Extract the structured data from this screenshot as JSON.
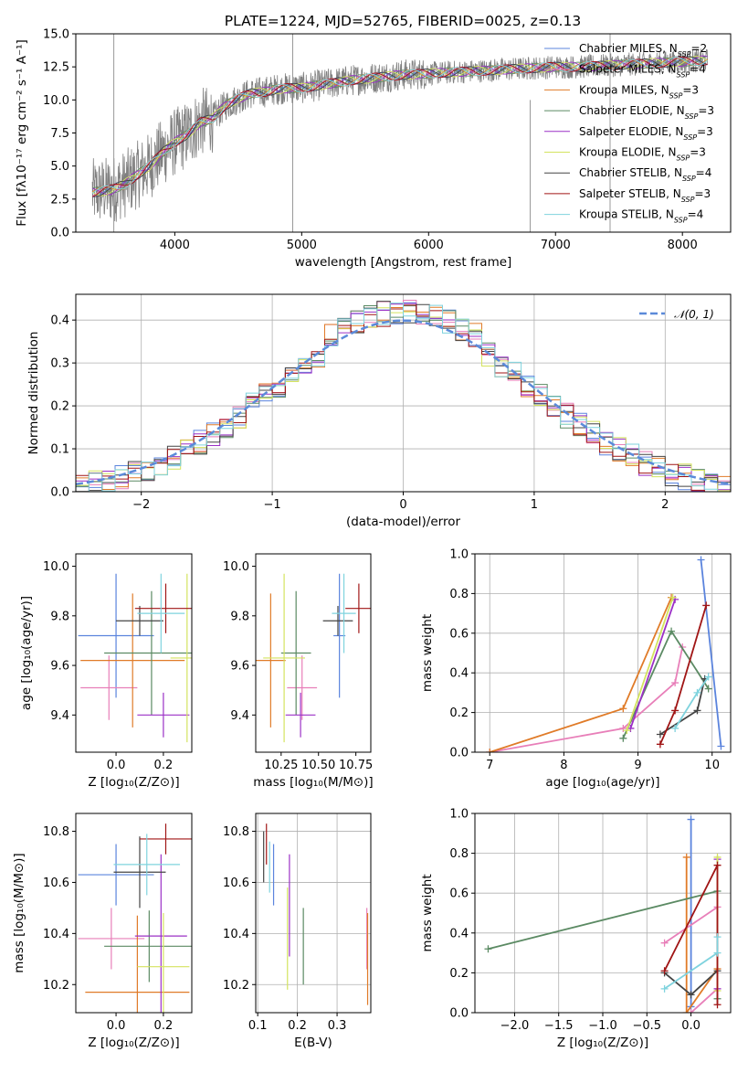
{
  "figure": {
    "spectrum_title": "PLATE=1224, MJD=52765, FIBERID=0025, z=0.13"
  },
  "colors": {
    "Chabrier MILES": "#5b84dd",
    "Salpeter MILES": "#e87fb9",
    "Kroupa MILES": "#e07b28",
    "Chabrier ELODIE": "#5b8a63",
    "Salpeter ELODIE": "#9b30c6",
    "Kroupa ELODIE": "#d4e35f",
    "Chabrier STELIB": "#444444",
    "Salpeter STELIB": "#a01515",
    "Kroupa STELIB": "#7fd3de",
    "data": "#808080",
    "normal": "#5b8ad9"
  },
  "chart_data": [
    {
      "id": "spectrum",
      "type": "line",
      "title": "PLATE=1224, MJD=52765, FIBERID=0025, z=0.13",
      "xlabel": "wavelength [Angstrom, rest frame]",
      "ylabel": "Flux [fλ10⁻¹⁷ erg cm⁻² s⁻¹ A⁻¹]",
      "xlim": [
        3220,
        8380
      ],
      "ylim": [
        0,
        15
      ],
      "xticks": [
        4000,
        5000,
        6000,
        7000,
        8000
      ],
      "yticks": [
        0.0,
        2.5,
        5.0,
        7.5,
        10.0,
        12.5,
        15.0
      ],
      "legend_position": "right",
      "data_trend": {
        "x": [
          3350,
          3500,
          3600,
          3700,
          3800,
          3900,
          4000,
          4100,
          4200,
          4300,
          4400,
          4500,
          4600,
          4700,
          4800,
          4900,
          5000,
          5200,
          5400,
          5600,
          5800,
          6000,
          6200,
          6400,
          6600,
          6800,
          7000,
          7200,
          7400,
          7600,
          7800,
          8000,
          8200
        ],
        "y": [
          3.0,
          3.2,
          3.6,
          4.3,
          5.0,
          6.0,
          6.8,
          7.4,
          8.3,
          8.6,
          9.6,
          10.1,
          10.5,
          10.6,
          10.8,
          10.9,
          10.9,
          11.2,
          11.5,
          11.7,
          11.9,
          12.0,
          12.1,
          12.2,
          12.3,
          12.4,
          12.5,
          12.5,
          12.6,
          12.7,
          12.8,
          12.9,
          13.0
        ]
      },
      "series": [
        {
          "name": "Chabrier MILES",
          "nssp": "2"
        },
        {
          "name": "Salpeter MILES",
          "nssp": "4"
        },
        {
          "name": "Kroupa MILES",
          "nssp": "3"
        },
        {
          "name": "Chabrier ELODIE",
          "nssp": "3"
        },
        {
          "name": "Salpeter ELODIE",
          "nssp": "3"
        },
        {
          "name": "Kroupa ELODIE",
          "nssp": "3"
        },
        {
          "name": "Chabrier STELIB",
          "nssp": "4"
        },
        {
          "name": "Salpeter STELIB",
          "nssp": "3"
        },
        {
          "name": "Kroupa STELIB",
          "nssp": "4"
        }
      ]
    },
    {
      "id": "residuals",
      "type": "line",
      "xlabel": "(data-model)/error",
      "ylabel": "Normed distribution",
      "xlim": [
        -2.5,
        2.5
      ],
      "ylim": [
        0,
        0.46
      ],
      "xticks": [
        -2,
        -1,
        0,
        1,
        2
      ],
      "yticks": [
        0.0,
        0.1,
        0.2,
        0.3,
        0.4
      ],
      "grid": true,
      "legend": "𝒩(0, 1)",
      "legend_position": "top-right",
      "bin_width": 0.1
    },
    {
      "id": "z_age",
      "type": "scatter",
      "xlabel": "Z [log₁₀(Z/Z⊙)]",
      "ylabel": "age  [log₁₀(age/yr)]",
      "xlim": [
        -0.17,
        0.32
      ],
      "ylim": [
        9.25,
        10.05
      ],
      "xticks": [
        0.0,
        0.2
      ],
      "yticks": [
        9.4,
        9.6,
        9.8,
        10.0
      ],
      "points": [
        {
          "model": "Chabrier MILES",
          "x": 0.0,
          "xerr": 0.16,
          "y": 9.72,
          "yerr": 0.25
        },
        {
          "model": "Salpeter MILES",
          "x": -0.03,
          "xerr": 0.12,
          "y": 9.51,
          "yerr": 0.13
        },
        {
          "model": "Kroupa MILES",
          "x": 0.07,
          "xerr": 0.22,
          "y": 9.62,
          "yerr": 0.27
        },
        {
          "model": "Chabrier ELODIE",
          "x": 0.15,
          "xerr": 0.2,
          "y": 9.65,
          "yerr": 0.25
        },
        {
          "model": "Salpeter ELODIE",
          "x": 0.2,
          "xerr": 0.11,
          "y": 9.4,
          "yerr": 0.09
        },
        {
          "model": "Kroupa ELODIE",
          "x": 0.3,
          "xerr": 0.07,
          "y": 9.63,
          "yerr": 0.34
        },
        {
          "model": "Chabrier STELIB",
          "x": 0.1,
          "xerr": 0.1,
          "y": 9.78,
          "yerr": 0.06
        },
        {
          "model": "Salpeter STELIB",
          "x": 0.21,
          "xerr": 0.13,
          "y": 9.83,
          "yerr": 0.1
        },
        {
          "model": "Kroupa STELIB",
          "x": 0.19,
          "xerr": 0.1,
          "y": 9.81,
          "yerr": 0.16
        }
      ]
    },
    {
      "id": "mass_age",
      "type": "scatter",
      "xlabel": "mass [log₁₀(M/M⊙)]",
      "ylabel": "",
      "xlim": [
        10.08,
        10.85
      ],
      "ylim": [
        9.25,
        10.05
      ],
      "xticks": [
        10.25,
        10.5,
        10.75
      ],
      "yticks": [
        9.4,
        9.6,
        9.8,
        10.0
      ],
      "points": [
        {
          "model": "Chabrier MILES",
          "x": 10.64,
          "xerr": 0.04,
          "y": 9.72,
          "yerr": 0.25
        },
        {
          "model": "Salpeter MILES",
          "x": 10.39,
          "xerr": 0.1,
          "y": 9.51,
          "yerr": 0.13
        },
        {
          "model": "Kroupa MILES",
          "x": 10.18,
          "xerr": 0.1,
          "y": 9.62,
          "yerr": 0.27
        },
        {
          "model": "Chabrier ELODIE",
          "x": 10.35,
          "xerr": 0.1,
          "y": 9.65,
          "yerr": 0.25
        },
        {
          "model": "Salpeter ELODIE",
          "x": 10.38,
          "xerr": 0.1,
          "y": 9.4,
          "yerr": 0.09
        },
        {
          "model": "Kroupa ELODIE",
          "x": 10.27,
          "xerr": 0.14,
          "y": 9.63,
          "yerr": 0.34
        },
        {
          "model": "Chabrier STELIB",
          "x": 10.63,
          "xerr": 0.1,
          "y": 9.78,
          "yerr": 0.06
        },
        {
          "model": "Salpeter STELIB",
          "x": 10.77,
          "xerr": 0.09,
          "y": 9.83,
          "yerr": 0.1
        },
        {
          "model": "Kroupa STELIB",
          "x": 10.67,
          "xerr": 0.08,
          "y": 9.81,
          "yerr": 0.16
        }
      ]
    },
    {
      "id": "age_weight",
      "type": "line",
      "xlabel": "age  [log₁₀(age/yr)]",
      "ylabel": "mass weight",
      "xlim": [
        6.8,
        10.25
      ],
      "ylim": [
        0,
        1.0
      ],
      "xticks": [
        7,
        8,
        9,
        10
      ],
      "yticks": [
        0.0,
        0.2,
        0.4,
        0.6,
        0.8,
        1.0
      ],
      "grid": true,
      "series": [
        {
          "model": "Chabrier MILES",
          "x": [
            9.85,
            10.12
          ],
          "y": [
            0.97,
            0.03
          ]
        },
        {
          "model": "Salpeter MILES",
          "x": [
            7.0,
            8.8,
            9.5,
            9.6
          ],
          "y": [
            0.0,
            0.12,
            0.35,
            0.53
          ]
        },
        {
          "model": "Kroupa MILES",
          "x": [
            7.0,
            8.8,
            9.45
          ],
          "y": [
            0.0,
            0.22,
            0.78
          ]
        },
        {
          "model": "Chabrier ELODIE",
          "x": [
            8.8,
            9.45,
            9.95
          ],
          "y": [
            0.07,
            0.61,
            0.32
          ]
        },
        {
          "model": "Salpeter ELODIE",
          "x": [
            8.9,
            9.5
          ],
          "y": [
            0.12,
            0.77
          ]
        },
        {
          "model": "Kroupa ELODIE",
          "x": [
            8.85,
            9.47
          ],
          "y": [
            0.11,
            0.78
          ]
        },
        {
          "model": "Chabrier STELIB",
          "x": [
            9.3,
            9.8,
            9.9
          ],
          "y": [
            0.09,
            0.21,
            0.37
          ]
        },
        {
          "model": "Salpeter STELIB",
          "x": [
            9.3,
            9.5,
            9.92
          ],
          "y": [
            0.04,
            0.21,
            0.74
          ]
        },
        {
          "model": "Kroupa STELIB",
          "x": [
            9.5,
            9.8,
            9.95
          ],
          "y": [
            0.12,
            0.3,
            0.38
          ]
        }
      ]
    },
    {
      "id": "z_mass",
      "type": "scatter",
      "xlabel": "Z [log₁₀(Z/Z⊙)]",
      "ylabel": "mass [log₁₀(M/M⊙)]",
      "xlim": [
        -0.17,
        0.32
      ],
      "ylim": [
        10.09,
        10.87
      ],
      "xticks": [
        0.0,
        0.2
      ],
      "yticks": [
        10.2,
        10.4,
        10.6,
        10.8
      ],
      "points": [
        {
          "model": "Chabrier MILES",
          "x": 0.0,
          "xerr": 0.16,
          "y": 10.63,
          "yerr": 0.12
        },
        {
          "model": "Salpeter MILES",
          "x": -0.02,
          "xerr": 0.14,
          "y": 10.38,
          "yerr": 0.12
        },
        {
          "model": "Kroupa MILES",
          "x": 0.09,
          "xerr": 0.22,
          "y": 10.17,
          "yerr": 0.3
        },
        {
          "model": "Chabrier ELODIE",
          "x": 0.14,
          "xerr": 0.19,
          "y": 10.35,
          "yerr": 0.14
        },
        {
          "model": "Salpeter ELODIE",
          "x": 0.19,
          "xerr": 0.11,
          "y": 10.39,
          "yerr": 0.32
        },
        {
          "model": "Kroupa ELODIE",
          "x": 0.2,
          "xerr": 0.11,
          "y": 10.27,
          "yerr": 0.21
        },
        {
          "model": "Chabrier STELIB",
          "x": 0.1,
          "xerr": 0.11,
          "y": 10.64,
          "yerr": 0.14
        },
        {
          "model": "Salpeter STELIB",
          "x": 0.21,
          "xerr": 0.11,
          "y": 10.77,
          "yerr": 0.06
        },
        {
          "model": "Kroupa STELIB",
          "x": 0.13,
          "xerr": 0.14,
          "y": 10.67,
          "yerr": 0.12
        }
      ]
    },
    {
      "id": "ebv_mass",
      "type": "scatter",
      "xlabel": "E(B-V)",
      "ylabel": "",
      "xlim": [
        0.095,
        0.385
      ],
      "ylim": [
        10.09,
        10.87
      ],
      "xticks": [
        0.1,
        0.2,
        0.3
      ],
      "yticks": [
        10.2,
        10.4,
        10.6,
        10.8
      ],
      "grid": true,
      "points": [
        {
          "model": "Chabrier MILES",
          "x": 0.14,
          "y": 10.63,
          "yerr": 0.12
        },
        {
          "model": "Salpeter MILES",
          "x": 0.375,
          "y": 10.38,
          "yerr": 0.12
        },
        {
          "model": "Kroupa MILES",
          "x": 0.377,
          "y": 10.3,
          "yerr": 0.18
        },
        {
          "model": "Chabrier ELODIE",
          "x": 0.215,
          "y": 10.35,
          "yerr": 0.15
        },
        {
          "model": "Salpeter ELODIE",
          "x": 0.18,
          "y": 10.51,
          "yerr": 0.2
        },
        {
          "model": "Kroupa ELODIE",
          "x": 0.175,
          "y": 10.38,
          "yerr": 0.2
        },
        {
          "model": "Chabrier STELIB",
          "x": 0.115,
          "y": 10.7,
          "yerr": 0.1
        },
        {
          "model": "Salpeter STELIB",
          "x": 0.122,
          "y": 10.75,
          "yerr": 0.08
        },
        {
          "model": "Kroupa STELIB",
          "x": 0.13,
          "y": 10.66,
          "yerr": 0.1
        }
      ]
    },
    {
      "id": "z_weight",
      "type": "line",
      "xlabel": "Z [log₁₀(Z/Z⊙)]",
      "ylabel": "mass weight",
      "xlim": [
        -2.45,
        0.45
      ],
      "ylim": [
        0,
        1.0
      ],
      "xticks": [
        -2.0,
        -1.5,
        -1.0,
        -0.5,
        0.0
      ],
      "yticks": [
        0.0,
        0.2,
        0.4,
        0.6,
        0.8,
        1.0
      ],
      "grid": true,
      "series": [
        {
          "model": "Chabrier MILES",
          "x": [
            0.0,
            0.0
          ],
          "y": [
            0.97,
            0.03
          ]
        },
        {
          "model": "Salpeter MILES",
          "x": [
            -0.3,
            0.3,
            0.3,
            0.0
          ],
          "y": [
            0.35,
            0.53,
            0.12,
            0.0
          ]
        },
        {
          "model": "Kroupa MILES",
          "x": [
            -0.05,
            -0.05,
            0.3
          ],
          "y": [
            0.78,
            0.0,
            0.22
          ]
        },
        {
          "model": "Chabrier ELODIE",
          "x": [
            -2.3,
            0.3,
            0.3
          ],
          "y": [
            0.32,
            0.61,
            0.07
          ]
        },
        {
          "model": "Salpeter ELODIE",
          "x": [
            0.3,
            0.3
          ],
          "y": [
            0.77,
            0.12
          ]
        },
        {
          "model": "Kroupa ELODIE",
          "x": [
            0.3,
            0.3
          ],
          "y": [
            0.78,
            0.11
          ]
        },
        {
          "model": "Chabrier STELIB",
          "x": [
            0.3,
            0.0,
            -0.3
          ],
          "y": [
            0.21,
            0.09,
            0.2
          ]
        },
        {
          "model": "Salpeter STELIB",
          "x": [
            -0.3,
            0.3,
            0.3
          ],
          "y": [
            0.21,
            0.74,
            0.04
          ]
        },
        {
          "model": "Kroupa STELIB",
          "x": [
            -0.3,
            0.3,
            0.3
          ],
          "y": [
            0.12,
            0.3,
            0.38
          ]
        }
      ]
    }
  ]
}
